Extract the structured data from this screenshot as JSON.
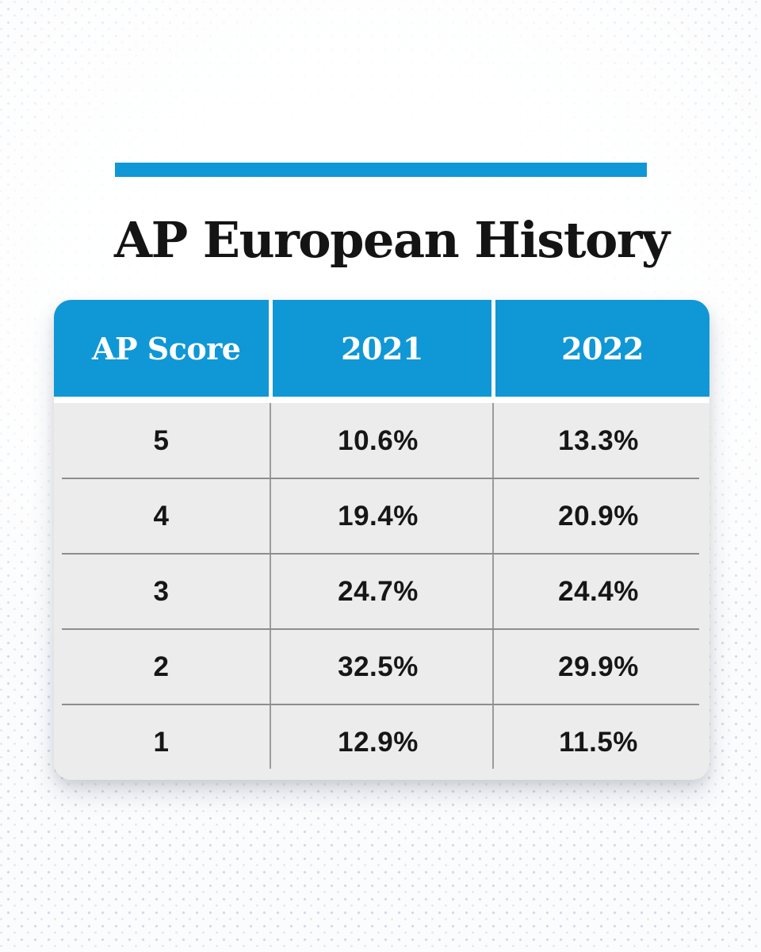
{
  "page": {
    "title": "AP European History",
    "accent_color": "#1097d6",
    "header_bg_color": "#1097d6",
    "body_bg_color": "#ececec"
  },
  "table": {
    "headers": [
      "AP Score",
      "2021",
      "2022"
    ],
    "rows": [
      [
        "5",
        "10.6%",
        "13.3%"
      ],
      [
        "4",
        "19.4%",
        "20.9%"
      ],
      [
        "3",
        "24.7%",
        "24.4%"
      ],
      [
        "2",
        "32.5%",
        "29.9%"
      ],
      [
        "1",
        "12.9%",
        "11.5%"
      ]
    ]
  },
  "chart_data": {
    "type": "table",
    "title": "AP European History",
    "columns": [
      "AP Score",
      "2021",
      "2022"
    ],
    "categories": [
      "5",
      "4",
      "3",
      "2",
      "1"
    ],
    "series": [
      {
        "name": "2021",
        "values": [
          10.6,
          19.4,
          24.7,
          32.5,
          12.9
        ]
      },
      {
        "name": "2022",
        "values": [
          13.3,
          20.9,
          24.4,
          29.9,
          11.5
        ]
      }
    ],
    "unit": "%"
  }
}
